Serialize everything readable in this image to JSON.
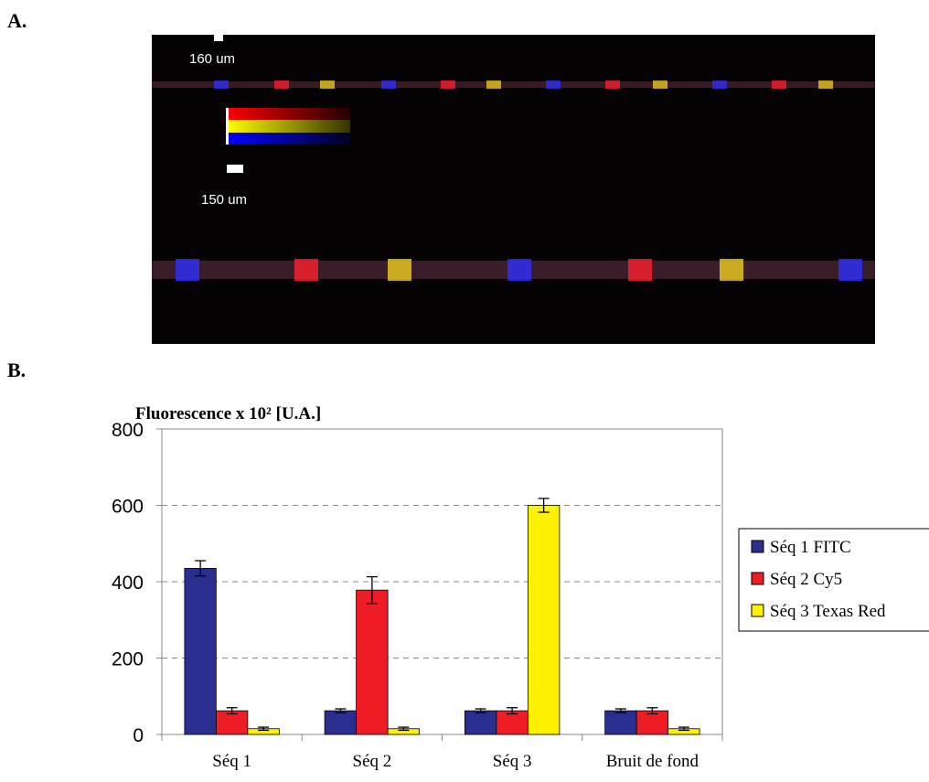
{
  "panel_a": {
    "label": "A.",
    "scale_labels": [
      "160 um",
      "150 um"
    ]
  },
  "panel_b": {
    "label": "B."
  },
  "chart_data": {
    "type": "bar",
    "y_label": "Fluorescence x 10² [U.A.]",
    "categories": [
      "Séq 1",
      "Séq 2",
      "Séq 3",
      "Bruit de fond"
    ],
    "series": [
      {
        "name": "Séq 1 FITC",
        "color": "#2a2f8f",
        "values": [
          435,
          62,
          62,
          62
        ],
        "errors": [
          20,
          5,
          5,
          5
        ]
      },
      {
        "name": "Séq 2 Cy5",
        "color": "#ee1c24",
        "values": [
          62,
          378,
          62,
          62
        ],
        "errors": [
          8,
          35,
          8,
          8
        ]
      },
      {
        "name": "Séq 3 Texas Red",
        "color": "#fff200",
        "values": [
          15,
          15,
          600,
          15
        ],
        "errors": [
          4,
          4,
          18,
          4
        ]
      }
    ],
    "ylim": [
      0,
      800
    ],
    "yticks": [
      0,
      200,
      400,
      600,
      800
    ],
    "grid": true,
    "legend": "right"
  }
}
